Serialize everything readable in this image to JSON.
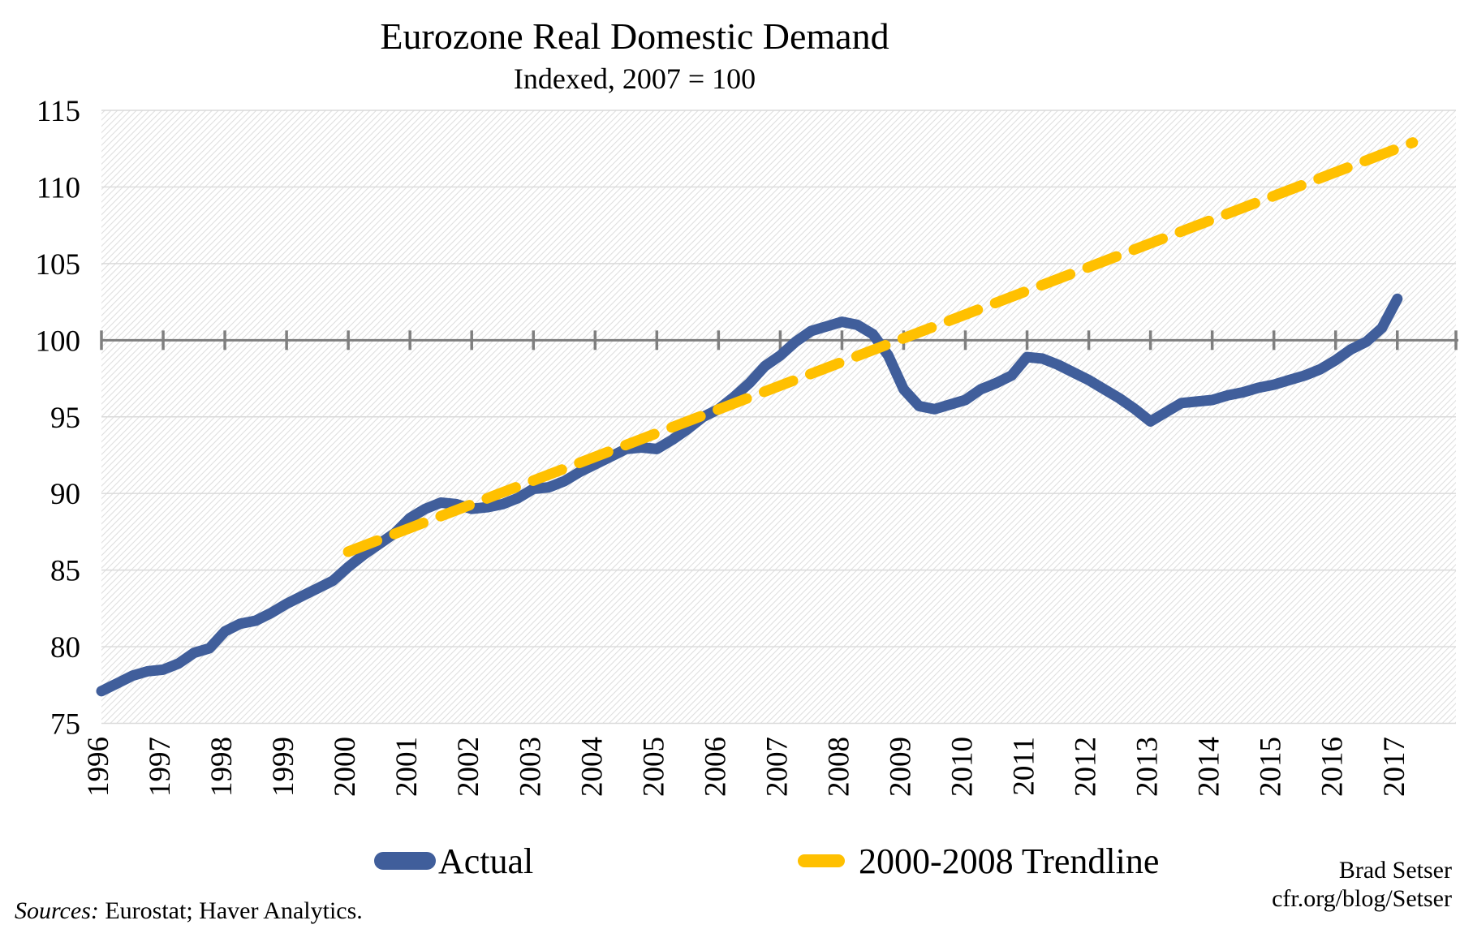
{
  "header": {
    "title": "Eurozone Real Domestic Demand",
    "subtitle": "Indexed, 2007 = 100"
  },
  "legend": {
    "items": [
      {
        "label": "Actual",
        "marker": "pill",
        "color": "#405E9B"
      },
      {
        "label": "2000-2008 Trendline",
        "marker": "dash",
        "color": "#FFC000"
      }
    ]
  },
  "footer": {
    "sources_label": "Sources:",
    "sources_rest": " Eurostat; Haver Analytics.",
    "credit_line1": "Brad Setser",
    "credit_line2": "cfr.org/blog/Setser"
  },
  "colors": {
    "actual_line": "#405E9B",
    "trend_line": "#FFC000",
    "axis_line": "#7F7F7F",
    "grid_line": "#DADADA",
    "hatch_line": "#DEDEDE",
    "text": "#000000"
  },
  "chart_data": {
    "type": "line",
    "title": "Eurozone Real Domestic Demand",
    "subtitle": "Indexed, 2007 = 100",
    "xlabel": "",
    "ylabel": "",
    "ylim": [
      75,
      115
    ],
    "yticks": [
      75,
      80,
      85,
      90,
      95,
      100,
      105,
      110,
      115
    ],
    "x_domain": [
      1996,
      2017.95
    ],
    "x_tick_years": [
      1996,
      1997,
      1998,
      1999,
      2000,
      2001,
      2002,
      2003,
      2004,
      2005,
      2006,
      2007,
      2008,
      2009,
      2010,
      2011,
      2012,
      2013,
      2014,
      2015,
      2016,
      2017
    ],
    "grid": "horizontal-faint",
    "baseline_value": 100,
    "legend_position": "bottom",
    "plot_background": "diagonal-hatch",
    "series": [
      {
        "name": "Actual",
        "style": "solid",
        "color": "#405E9B",
        "x_start": 1996,
        "x_step": 0.25,
        "values": [
          77.1,
          77.6,
          78.1,
          78.4,
          78.5,
          78.9,
          79.6,
          79.9,
          81.0,
          81.5,
          81.7,
          82.2,
          82.8,
          83.3,
          83.8,
          84.3,
          85.2,
          86.0,
          86.7,
          87.4,
          88.4,
          89.0,
          89.4,
          89.3,
          89.0,
          89.1,
          89.3,
          89.7,
          90.3,
          90.4,
          90.8,
          91.4,
          91.9,
          92.4,
          92.9,
          93.0,
          92.9,
          93.5,
          94.2,
          95.0,
          95.5,
          96.3,
          97.2,
          98.3,
          99.0,
          99.9,
          100.6,
          100.9,
          101.2,
          101.0,
          100.4,
          99.0,
          96.8,
          95.7,
          95.5,
          95.8,
          96.1,
          96.8,
          97.2,
          97.7,
          98.9,
          98.8,
          98.4,
          97.9,
          97.4,
          96.8,
          96.2,
          95.5,
          94.7,
          95.3,
          95.9,
          96.0,
          96.1,
          96.4,
          96.6,
          96.9,
          97.1,
          97.4,
          97.7,
          98.1,
          98.7,
          99.4,
          99.9,
          100.8,
          102.7
        ]
      },
      {
        "name": "2000-2008 Trendline",
        "style": "dashed",
        "color": "#FFC000",
        "x": [
          2000,
          2017.25
        ],
        "values": [
          86.2,
          112.9
        ]
      }
    ]
  }
}
